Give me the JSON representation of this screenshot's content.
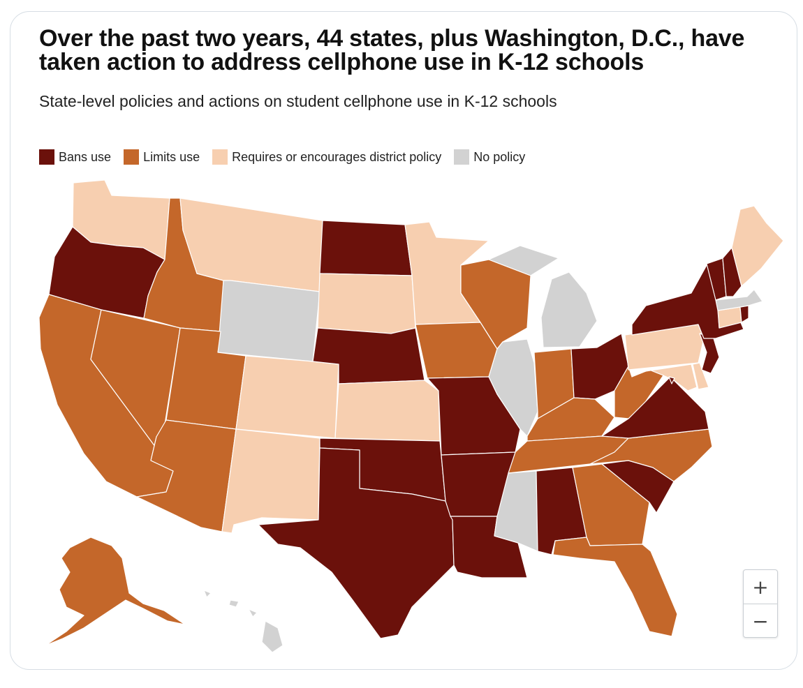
{
  "title": "Over the past two years, 44 states, plus Washington, D.C., have taken action to address cellphone use in K-12 schools",
  "subtitle": "State-level policies and actions on student cellphone use in K-12 schools",
  "colors": {
    "ban": "#6b110b",
    "limit": "#c4672a",
    "district": "#f7cfb0",
    "none": "#d2d2d2",
    "lakes": "#d2d2d2"
  },
  "legend": [
    {
      "key": "ban",
      "label": "Bans use"
    },
    {
      "key": "limit",
      "label": "Limits use"
    },
    {
      "key": "district",
      "label": "Requires or encourages district policy"
    },
    {
      "key": "none",
      "label": "No policy"
    }
  ],
  "states": {
    "WA": "district",
    "OR": "ban",
    "CA": "limit",
    "ID": "limit",
    "NV": "limit",
    "MT": "district",
    "WY": "none",
    "UT": "limit",
    "AZ": "limit",
    "CO": "district",
    "NM": "district",
    "ND": "ban",
    "SD": "district",
    "NE": "ban",
    "KS": "district",
    "OK": "ban",
    "TX": "ban",
    "MN": "district",
    "IA": "limit",
    "MO": "ban",
    "AR": "ban",
    "LA": "ban",
    "WI": "limit",
    "IL": "none",
    "MI": "none",
    "IN": "limit",
    "OH": "ban",
    "KY": "limit",
    "TN": "limit",
    "MS": "none",
    "AL": "ban",
    "GA": "limit",
    "FL": "limit",
    "SC": "ban",
    "NC": "limit",
    "VA": "ban",
    "WV": "limit",
    "MD": "district",
    "DE": "district",
    "PA": "district",
    "NJ": "ban",
    "NY": "ban",
    "CT": "district",
    "RI": "ban",
    "MA": "none",
    "VT": "ban",
    "NH": "ban",
    "ME": "district",
    "DC": "ban",
    "AK": "limit",
    "HI": "none"
  },
  "zoom": {
    "in_label": "+",
    "out_label": "−"
  }
}
